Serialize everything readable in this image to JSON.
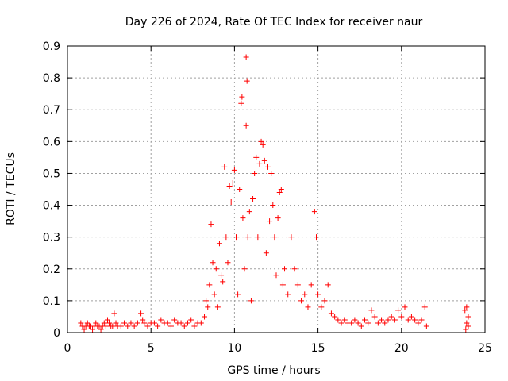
{
  "chart_data": {
    "type": "scatter",
    "title": "Day 226 of 2024, Rate Of TEC Index for receiver naur",
    "xlabel": "GPS time / hours",
    "ylabel": "ROTI / TECUs",
    "xlim": [
      0,
      25
    ],
    "ylim": [
      0,
      0.9
    ],
    "xticks": [
      0,
      5,
      10,
      15,
      20,
      25
    ],
    "xtick_labels": [
      "0",
      "5",
      "10",
      "15",
      "20",
      "25"
    ],
    "yticks": [
      0,
      0.1,
      0.2,
      0.3,
      0.4,
      0.5,
      0.6,
      0.7,
      0.8,
      0.9
    ],
    "ytick_labels": [
      "0",
      "0.1",
      "0.2",
      "0.3",
      "0.4",
      "0.5",
      "0.6",
      "0.7",
      "0.8",
      "0.9"
    ],
    "grid": true,
    "marker": "+",
    "color": "#ff0000",
    "series": [
      {
        "name": "naur",
        "points": [
          [
            0.8,
            0.03
          ],
          [
            0.9,
            0.02
          ],
          [
            1.0,
            0.01
          ],
          [
            1.1,
            0.02
          ],
          [
            1.2,
            0.03
          ],
          [
            1.3,
            0.02
          ],
          [
            1.4,
            0.02
          ],
          [
            1.5,
            0.01
          ],
          [
            1.6,
            0.02
          ],
          [
            1.7,
            0.03
          ],
          [
            1.8,
            0.02
          ],
          [
            1.9,
            0.02
          ],
          [
            2.0,
            0.01
          ],
          [
            2.1,
            0.02
          ],
          [
            2.2,
            0.03
          ],
          [
            2.3,
            0.02
          ],
          [
            2.4,
            0.04
          ],
          [
            2.5,
            0.03
          ],
          [
            2.6,
            0.02
          ],
          [
            2.7,
            0.02
          ],
          [
            2.8,
            0.06
          ],
          [
            2.9,
            0.03
          ],
          [
            3.0,
            0.02
          ],
          [
            3.2,
            0.02
          ],
          [
            3.4,
            0.03
          ],
          [
            3.6,
            0.02
          ],
          [
            3.8,
            0.03
          ],
          [
            4.0,
            0.02
          ],
          [
            4.2,
            0.03
          ],
          [
            4.4,
            0.06
          ],
          [
            4.5,
            0.04
          ],
          [
            4.6,
            0.03
          ],
          [
            4.8,
            0.02
          ],
          [
            5.0,
            0.03
          ],
          [
            5.2,
            0.03
          ],
          [
            5.4,
            0.02
          ],
          [
            5.6,
            0.04
          ],
          [
            5.8,
            0.03
          ],
          [
            6.0,
            0.03
          ],
          [
            6.2,
            0.02
          ],
          [
            6.4,
            0.04
          ],
          [
            6.6,
            0.03
          ],
          [
            6.8,
            0.03
          ],
          [
            7.0,
            0.02
          ],
          [
            7.2,
            0.03
          ],
          [
            7.4,
            0.04
          ],
          [
            7.6,
            0.02
          ],
          [
            7.8,
            0.03
          ],
          [
            8.0,
            0.03
          ],
          [
            8.2,
            0.05
          ],
          [
            8.3,
            0.1
          ],
          [
            8.4,
            0.08
          ],
          [
            8.5,
            0.15
          ],
          [
            8.6,
            0.34
          ],
          [
            8.7,
            0.22
          ],
          [
            8.8,
            0.12
          ],
          [
            8.9,
            0.2
          ],
          [
            9.0,
            0.08
          ],
          [
            9.1,
            0.28
          ],
          [
            9.2,
            0.18
          ],
          [
            9.3,
            0.16
          ],
          [
            9.4,
            0.52
          ],
          [
            9.5,
            0.3
          ],
          [
            9.6,
            0.22
          ],
          [
            9.7,
            0.46
          ],
          [
            9.8,
            0.41
          ],
          [
            9.9,
            0.47
          ],
          [
            10.0,
            0.51
          ],
          [
            10.1,
            0.3
          ],
          [
            10.2,
            0.12
          ],
          [
            10.3,
            0.45
          ],
          [
            10.4,
            0.72
          ],
          [
            10.45,
            0.74
          ],
          [
            10.5,
            0.36
          ],
          [
            10.6,
            0.2
          ],
          [
            10.7,
            0.865
          ],
          [
            10.75,
            0.79
          ],
          [
            10.7,
            0.65
          ],
          [
            10.8,
            0.3
          ],
          [
            10.9,
            0.38
          ],
          [
            11.0,
            0.1
          ],
          [
            11.1,
            0.42
          ],
          [
            11.2,
            0.5
          ],
          [
            11.3,
            0.55
          ],
          [
            11.4,
            0.3
          ],
          [
            11.5,
            0.53
          ],
          [
            11.6,
            0.6
          ],
          [
            11.7,
            0.59
          ],
          [
            11.8,
            0.54
          ],
          [
            11.9,
            0.25
          ],
          [
            12.0,
            0.52
          ],
          [
            12.1,
            0.35
          ],
          [
            12.2,
            0.5
          ],
          [
            12.3,
            0.4
          ],
          [
            12.4,
            0.3
          ],
          [
            12.5,
            0.18
          ],
          [
            12.6,
            0.36
          ],
          [
            12.7,
            0.44
          ],
          [
            12.8,
            0.45
          ],
          [
            12.9,
            0.15
          ],
          [
            13.0,
            0.2
          ],
          [
            13.2,
            0.12
          ],
          [
            13.4,
            0.3
          ],
          [
            13.6,
            0.2
          ],
          [
            13.8,
            0.15
          ],
          [
            14.0,
            0.1
          ],
          [
            14.2,
            0.12
          ],
          [
            14.4,
            0.08
          ],
          [
            14.6,
            0.15
          ],
          [
            14.8,
            0.38
          ],
          [
            14.9,
            0.3
          ],
          [
            15.0,
            0.12
          ],
          [
            15.2,
            0.08
          ],
          [
            15.4,
            0.1
          ],
          [
            15.6,
            0.15
          ],
          [
            15.8,
            0.06
          ],
          [
            16.0,
            0.05
          ],
          [
            16.2,
            0.04
          ],
          [
            16.4,
            0.03
          ],
          [
            16.6,
            0.04
          ],
          [
            16.8,
            0.03
          ],
          [
            17.0,
            0.03
          ],
          [
            17.2,
            0.04
          ],
          [
            17.4,
            0.03
          ],
          [
            17.6,
            0.02
          ],
          [
            17.8,
            0.04
          ],
          [
            18.0,
            0.03
          ],
          [
            18.2,
            0.07
          ],
          [
            18.4,
            0.05
          ],
          [
            18.6,
            0.03
          ],
          [
            18.8,
            0.04
          ],
          [
            19.0,
            0.03
          ],
          [
            19.2,
            0.04
          ],
          [
            19.4,
            0.05
          ],
          [
            19.6,
            0.04
          ],
          [
            19.8,
            0.07
          ],
          [
            20.0,
            0.05
          ],
          [
            20.2,
            0.08
          ],
          [
            20.4,
            0.04
          ],
          [
            20.6,
            0.05
          ],
          [
            20.8,
            0.04
          ],
          [
            21.0,
            0.03
          ],
          [
            21.2,
            0.04
          ],
          [
            21.4,
            0.08
          ],
          [
            21.5,
            0.02
          ],
          [
            23.8,
            0.07
          ],
          [
            23.9,
            0.08
          ],
          [
            24.0,
            0.05
          ],
          [
            23.9,
            0.03
          ],
          [
            24.0,
            0.02
          ],
          [
            23.85,
            0.01
          ]
        ]
      }
    ]
  }
}
